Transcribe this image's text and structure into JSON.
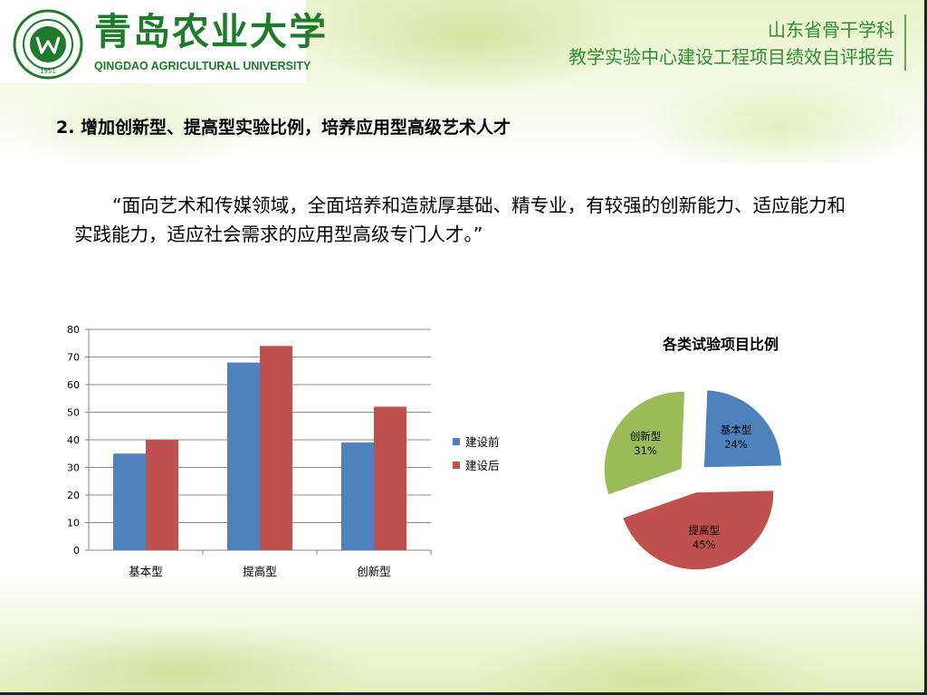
{
  "header": {
    "university_cn": "青岛农业大学",
    "university_en": "QINGDAO AGRICULTURAL UNIVERSITY",
    "seal_year": "1951",
    "line1": "山东省骨干学科",
    "line2": "教学实验中心建设工程项目绩效自评报告"
  },
  "content": {
    "title": "2. 增加创新型、提高型实验比例，培养应用型高级艺术人才",
    "quote": "“面向艺术和传媒领域，全面培养和造就厚基础、精专业，有较强的创新能力、适应能力和实践能力，适应社会需求的应用型高级专门人才。”"
  },
  "colors": {
    "before": "#4f81bd",
    "after": "#c0504d",
    "green": "#9bbb59",
    "accent_text": "#2f8f2f"
  },
  "chart_data": [
    {
      "type": "bar",
      "title": "",
      "categories": [
        "基本型",
        "提高型",
        "创新型"
      ],
      "series": [
        {
          "name": "建设前",
          "values": [
            35,
            68,
            39
          ],
          "color": "#4f81bd"
        },
        {
          "name": "建设后",
          "values": [
            40,
            74,
            52
          ],
          "color": "#c0504d"
        }
      ],
      "ylim": [
        0,
        80
      ],
      "yticks": [
        "0",
        "10",
        "20",
        "30",
        "40",
        "50",
        "60",
        "70",
        "80"
      ],
      "grid": true,
      "legend": "right"
    },
    {
      "type": "pie",
      "title": "各类试验项目比例",
      "slices": [
        {
          "label": "基本型",
          "value": 24,
          "pct_label": "24%",
          "color": "#4f81bd"
        },
        {
          "label": "提高型",
          "value": 45,
          "pct_label": "45%",
          "color": "#c0504d"
        },
        {
          "label": "创新型",
          "value": 31,
          "pct_label": "31%",
          "color": "#9bbb59"
        }
      ],
      "exploded": true
    }
  ]
}
